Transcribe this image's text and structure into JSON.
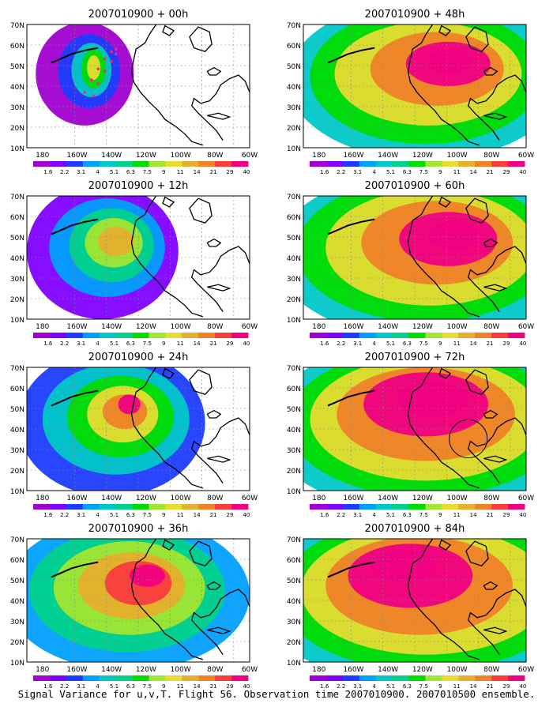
{
  "figure": {
    "footer": "Signal Variance for u,v,T. Flight 56. Observation time 2007010900. 2007010500 ensemble."
  },
  "axes": {
    "lat_labels": [
      "70N",
      "60N",
      "50N",
      "40N",
      "30N",
      "20N",
      "10N"
    ],
    "lon_labels": [
      "180",
      "160W",
      "140W",
      "120W",
      "100W",
      "80W",
      "60W"
    ]
  },
  "colorbar": {
    "labels": [
      "1.6",
      "2.2",
      "3.1",
      "4",
      "5.1",
      "6.3",
      "7.5",
      "9",
      "11",
      "14",
      "21",
      "29",
      "40"
    ],
    "colors": [
      "#a000d0",
      "#8000ff",
      "#1e3cff",
      "#00a0ff",
      "#00c8c8",
      "#00d28c",
      "#00dc00",
      "#a0e632",
      "#e6dc32",
      "#e6af2d",
      "#f08228",
      "#fa3c3c",
      "#f00082"
    ]
  },
  "panels": [
    {
      "title": "2007010900 + 00h",
      "level": 0,
      "obs_track": true,
      "circle": false
    },
    {
      "title": "2007010900 + 48h",
      "level": 4,
      "obs_track": false,
      "circle": false
    },
    {
      "title": "2007010900 + 12h",
      "level": 1,
      "obs_track": false,
      "circle": false
    },
    {
      "title": "2007010900 + 60h",
      "level": 5,
      "obs_track": false,
      "circle": false
    },
    {
      "title": "2007010900 + 24h",
      "level": 2,
      "obs_track": false,
      "circle": false
    },
    {
      "title": "2007010900 + 72h",
      "level": 6,
      "obs_track": false,
      "circle": true
    },
    {
      "title": "2007010900 + 36h",
      "level": 3,
      "obs_track": false,
      "circle": false
    },
    {
      "title": "2007010900 + 84h",
      "level": 7,
      "obs_track": false,
      "circle": false
    }
  ]
}
